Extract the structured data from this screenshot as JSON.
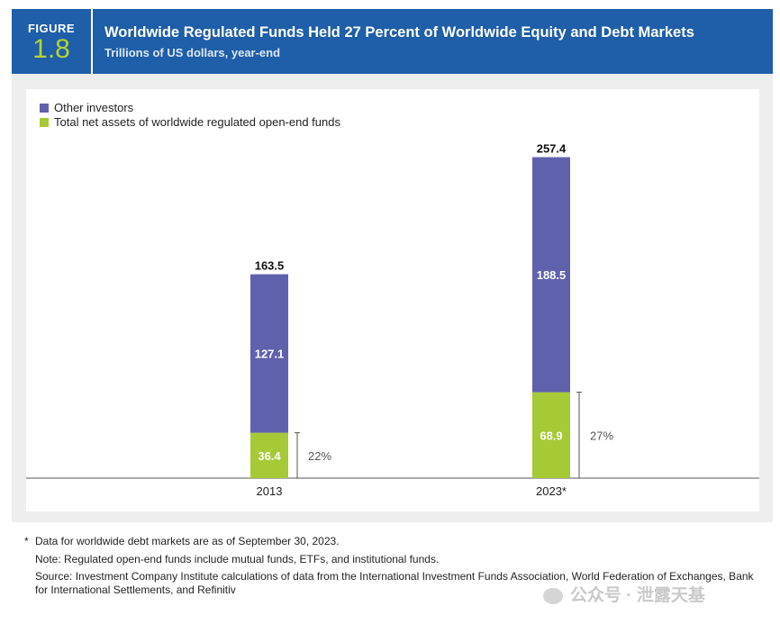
{
  "figure": {
    "label": "FIGURE",
    "number": "1.8"
  },
  "header": {
    "title": "Worldwide Regulated Funds Held 27 Percent of Worldwide Equity and Debt Markets",
    "subtitle": "Trillions of US dollars, year-end"
  },
  "colors": {
    "header_bg": "#1f5ea8",
    "other": "#6061ad",
    "funds": "#a6c936",
    "accent_num": "#b5d335"
  },
  "chart_data": {
    "type": "bar",
    "stacked": true,
    "title": "Worldwide Regulated Funds Held 27 Percent of Worldwide Equity and Debt Markets",
    "ylabel": "Trillions of US dollars, year-end",
    "categories": [
      "2013",
      "2023*"
    ],
    "series": [
      {
        "name": "Total net assets of worldwide regulated open-end funds",
        "values": [
          36.4,
          68.9
        ],
        "labels": [
          "36.4",
          "68.9"
        ]
      },
      {
        "name": "Other investors",
        "values": [
          127.1,
          188.5
        ],
        "labels": [
          "127.1",
          "188.5"
        ]
      }
    ],
    "totals": [
      163.5,
      257.4
    ],
    "total_labels": [
      "163.5",
      "257.4"
    ],
    "shares": [
      "22%",
      "27%"
    ],
    "ylim": [
      0,
      265
    ],
    "legend": [
      "Other investors",
      "Total net assets of worldwide regulated open-end funds"
    ],
    "legend_position": "top-left"
  },
  "footnotes": {
    "star_mark": "*",
    "star_note": "Data for worldwide debt markets are as of September 30, 2023.",
    "note": "Note: Regulated open-end funds include mutual funds, ETFs, and institutional funds.",
    "source": "Source: Investment Company Institute calculations of data from the International Investment Funds Association, World Federation of Exchanges, Bank for International Settlements, and Refinitiv"
  },
  "watermark": "公众号 · 泄露天基"
}
